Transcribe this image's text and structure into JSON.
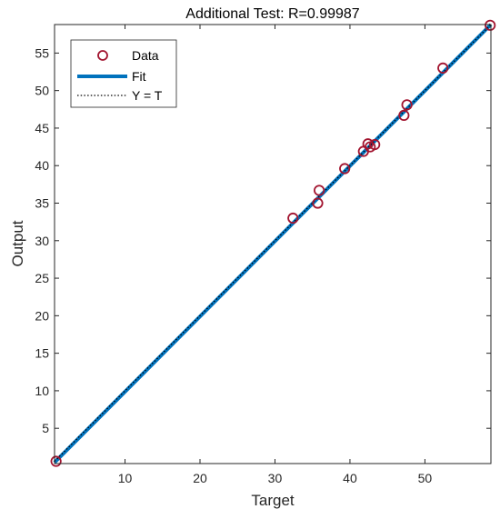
{
  "chart_data": {
    "type": "scatter",
    "title": "Additional Test: R=0.99987",
    "xlabel": "Target",
    "ylabel": "Output",
    "xlim": [
      0.6,
      58.8
    ],
    "ylim": [
      0.3,
      58.8
    ],
    "xticks": [
      10,
      20,
      30,
      40,
      50
    ],
    "yticks": [
      5,
      10,
      15,
      20,
      25,
      30,
      35,
      40,
      45,
      50,
      55
    ],
    "grid": false,
    "legend_position": "top-left",
    "series": [
      {
        "name": "Data",
        "kind": "scatter",
        "color": "#A2142F",
        "points": [
          [
            0.8,
            0.6
          ],
          [
            32.4,
            33.0
          ],
          [
            35.7,
            35.0
          ],
          [
            35.9,
            36.7
          ],
          [
            39.3,
            39.6
          ],
          [
            41.8,
            41.9
          ],
          [
            42.4,
            42.9
          ],
          [
            42.7,
            42.5
          ],
          [
            43.3,
            42.8
          ],
          [
            47.2,
            46.7
          ],
          [
            47.6,
            48.1
          ],
          [
            52.4,
            53.0
          ],
          [
            58.7,
            58.7
          ]
        ]
      },
      {
        "name": "Fit",
        "kind": "line",
        "color": "#0072BD",
        "points": [
          [
            0.6,
            0.45
          ],
          [
            58.8,
            58.8
          ]
        ]
      },
      {
        "name": "Y = T",
        "kind": "dotted-line",
        "color": "#000000",
        "points": [
          [
            0.6,
            0.6
          ],
          [
            58.8,
            58.8
          ]
        ]
      }
    ]
  }
}
